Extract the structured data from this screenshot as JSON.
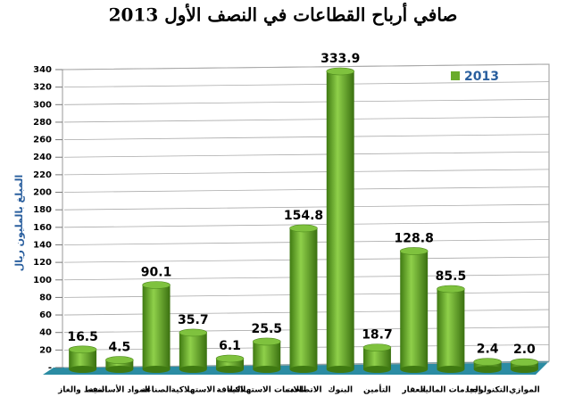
{
  "chart_data": {
    "type": "bar",
    "title": "صافي أرباح القطاعات في النصف الأول 2013",
    "y_label": "المبلغ بالمليون ريال",
    "categories": [
      "النفط والغاز",
      "المواد الأساسية",
      "الصناعة",
      "الاستهلاكية",
      "الطاقة",
      "الخدمات الاستهلاكية",
      "الاتصالات",
      "البنوك",
      "التأمين",
      "العقار",
      "الخدمات المالية",
      "التكنولوجيا",
      "الموازي"
    ],
    "series": [
      {
        "name": "2013",
        "color": "#6aab2c",
        "values": [
          16.5,
          4.5,
          90.1,
          35.7,
          6.1,
          25.5,
          154.8,
          333.9,
          18.7,
          128.8,
          85.5,
          2.4,
          2.0
        ],
        "value_labels": [
          "16.5",
          "4.5",
          "90.1",
          "35.7",
          "6.1",
          "25.5",
          "154.8",
          "333.9",
          "18.7",
          "128.8",
          "85.5",
          "2.4",
          "2.0"
        ]
      }
    ],
    "ylim": [
      0,
      340
    ],
    "yticks": [
      {
        "value": 0,
        "label": "-"
      },
      20,
      40,
      60,
      80,
      100,
      120,
      140,
      160,
      180,
      200,
      220,
      240,
      260,
      280,
      300,
      320,
      340
    ],
    "grid": true,
    "legend": "top-right"
  }
}
